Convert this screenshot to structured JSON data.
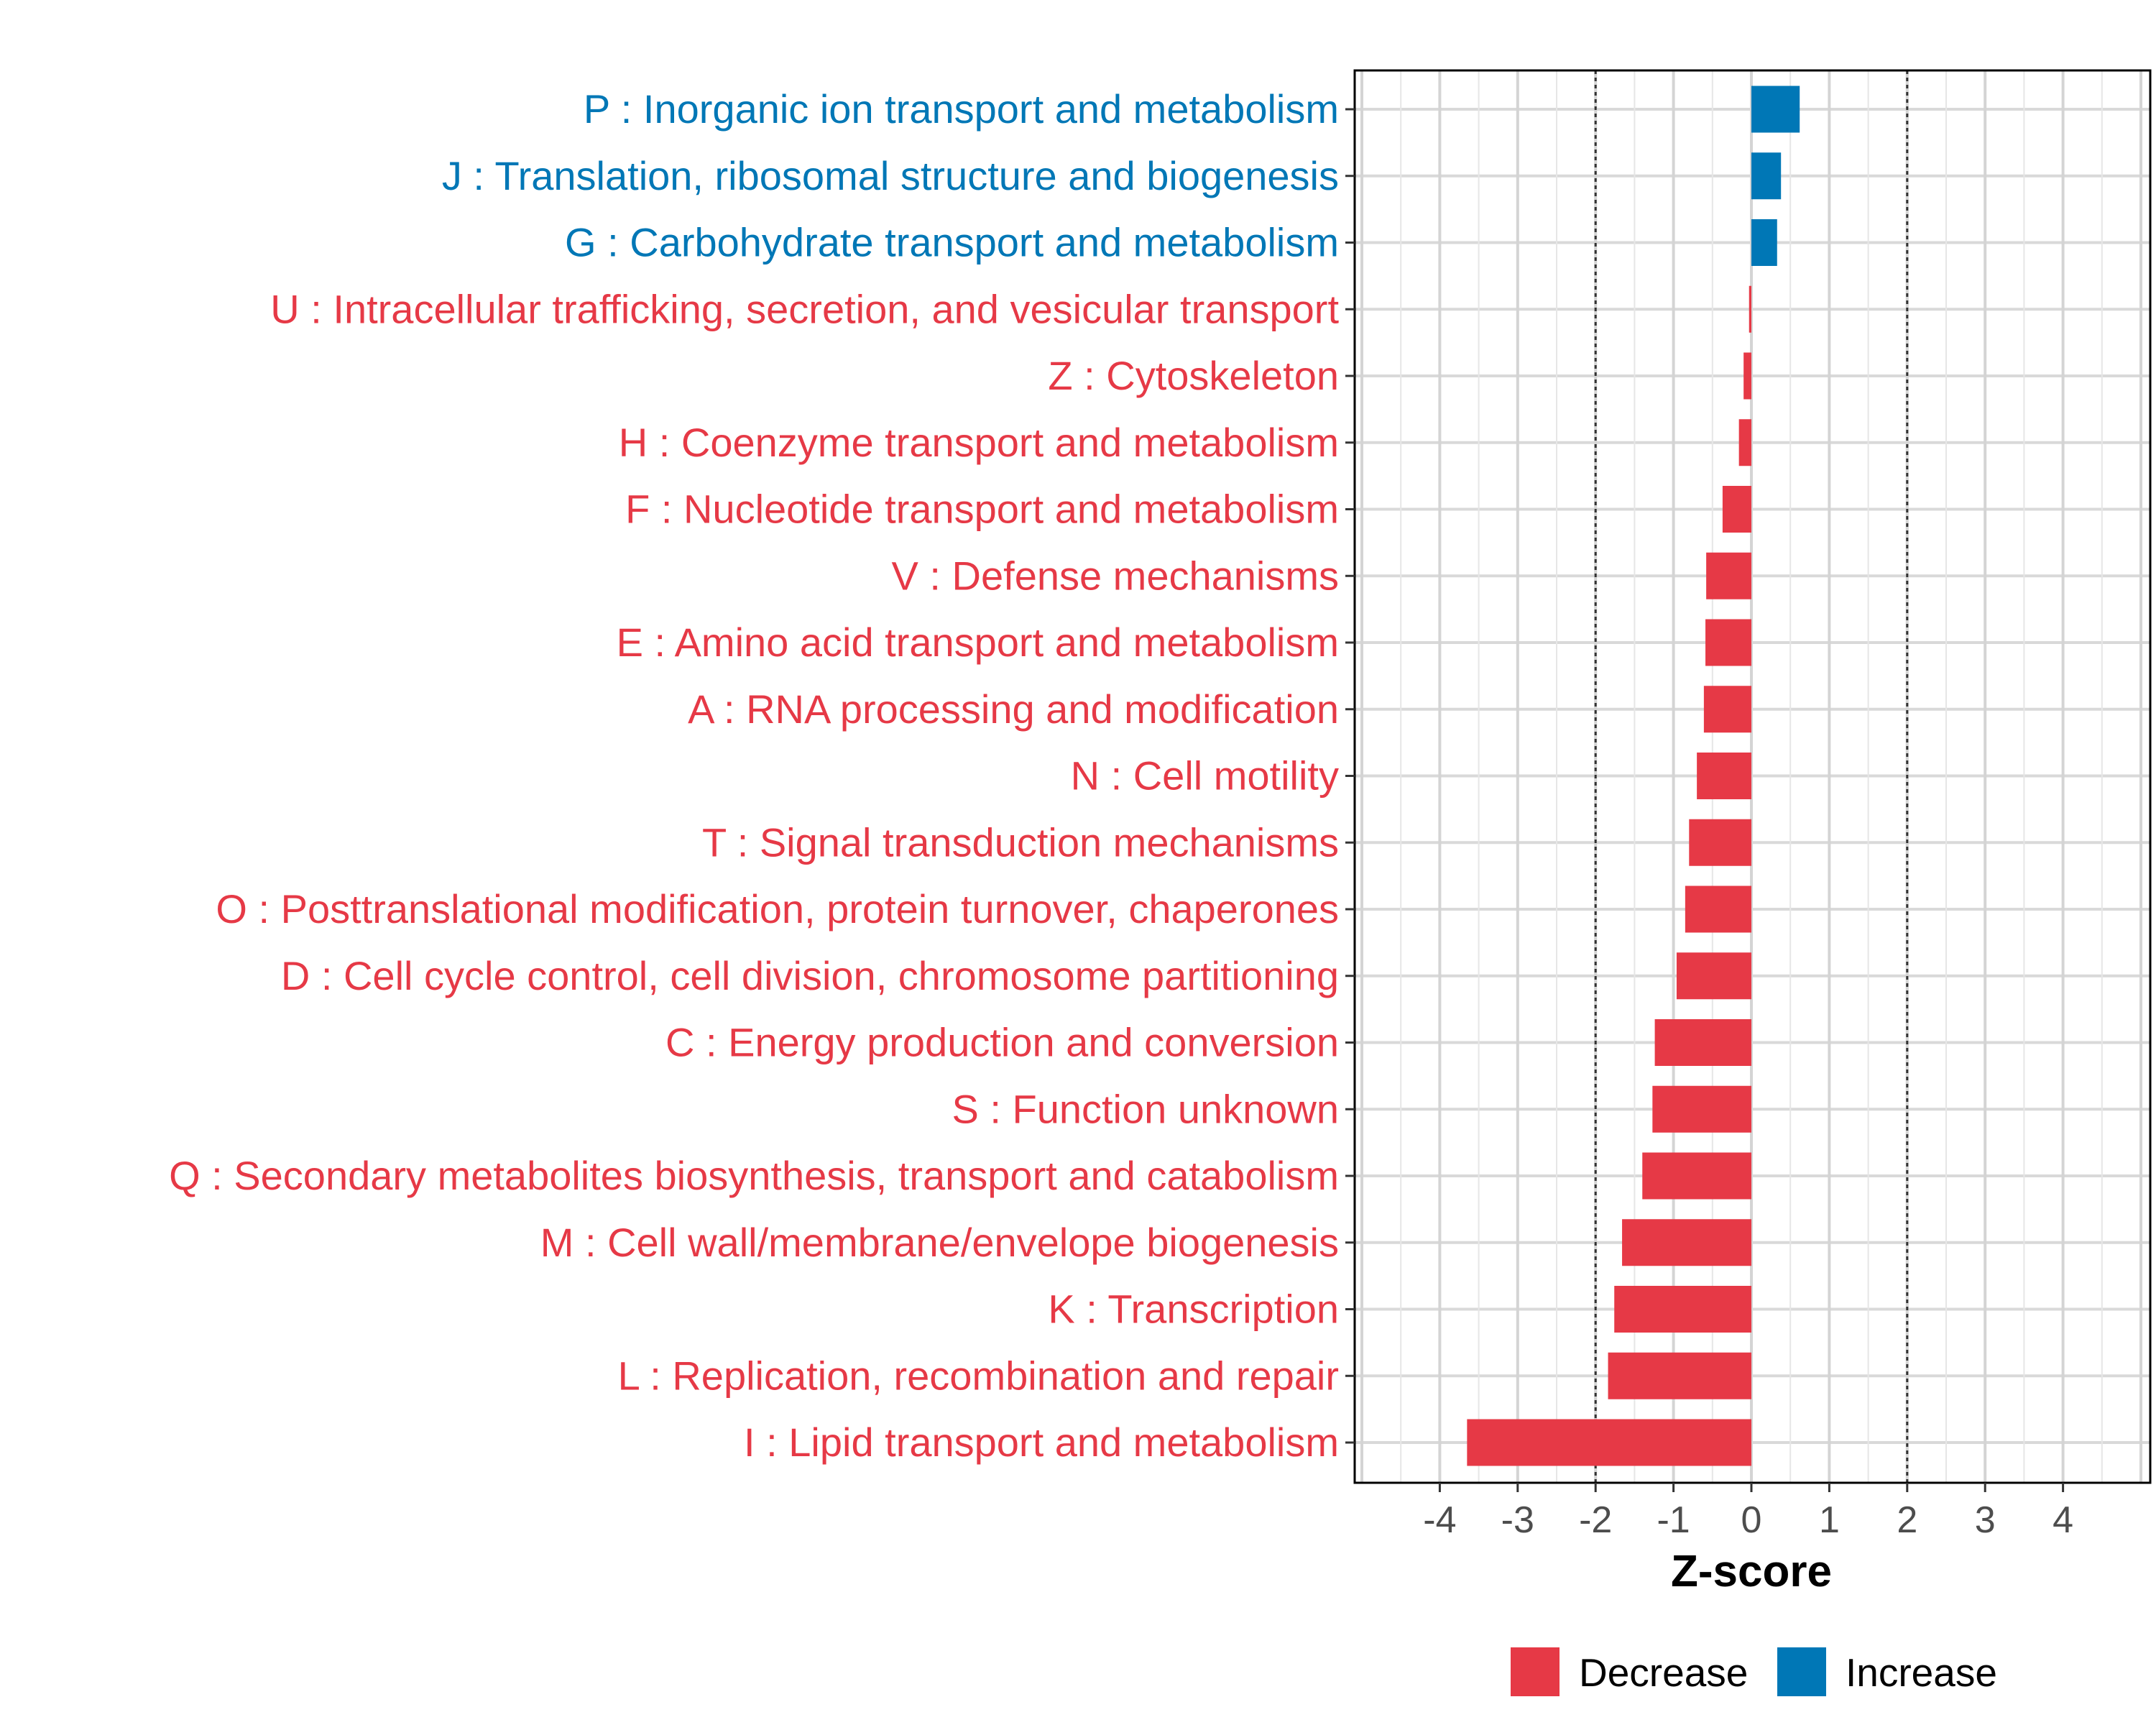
{
  "chart_data": {
    "type": "bar",
    "orientation": "horizontal",
    "xlabel": "Z-score",
    "ylabel": "",
    "xlim": [
      -5.1,
      5.1
    ],
    "xticks": [
      -4,
      -3,
      -2,
      -1,
      0,
      1,
      2,
      3,
      4
    ],
    "xtick_labels": [
      "-4",
      "-3",
      "-2",
      "-1",
      "0",
      "1",
      "2",
      "3",
      "4"
    ],
    "threshold_lines": [
      -2,
      2
    ],
    "grid": true,
    "legend_position": "bottom",
    "legend": [
      {
        "name": "Decrease",
        "color": "#e63946"
      },
      {
        "name": "Increase",
        "color": "#0077b6"
      }
    ],
    "categories": [
      "P : Inorganic ion transport and metabolism",
      "J : Translation, ribosomal structure and biogenesis",
      "G : Carbohydrate transport and metabolism",
      "U : Intracellular trafficking, secretion, and vesicular transport",
      "Z : Cytoskeleton",
      "H : Coenzyme transport and metabolism",
      "F : Nucleotide transport and metabolism",
      "V : Defense mechanisms",
      "E : Amino acid transport and metabolism",
      "A : RNA processing and modification",
      "N : Cell motility",
      "T : Signal transduction mechanisms",
      "O : Posttranslational modification, protein turnover, chaperones",
      "D : Cell cycle control, cell division, chromosome partitioning",
      "C : Energy production and conversion",
      "S : Function unknown",
      "Q : Secondary metabolites biosynthesis, transport and catabolism",
      "M : Cell wall/membrane/envelope biogenesis",
      "K : Transcription",
      "L : Replication, recombination and repair",
      "I : Lipid transport and metabolism"
    ],
    "values": [
      0.62,
      0.38,
      0.33,
      -0.03,
      -0.1,
      -0.16,
      -0.37,
      -0.58,
      -0.59,
      -0.61,
      -0.7,
      -0.8,
      -0.85,
      -0.96,
      -1.24,
      -1.27,
      -1.4,
      -1.66,
      -1.76,
      -1.84,
      -3.65
    ],
    "series_assignment": [
      "Increase",
      "Increase",
      "Increase",
      "Decrease",
      "Decrease",
      "Decrease",
      "Decrease",
      "Decrease",
      "Decrease",
      "Decrease",
      "Decrease",
      "Decrease",
      "Decrease",
      "Decrease",
      "Decrease",
      "Decrease",
      "Decrease",
      "Decrease",
      "Decrease",
      "Decrease",
      "Decrease"
    ]
  }
}
